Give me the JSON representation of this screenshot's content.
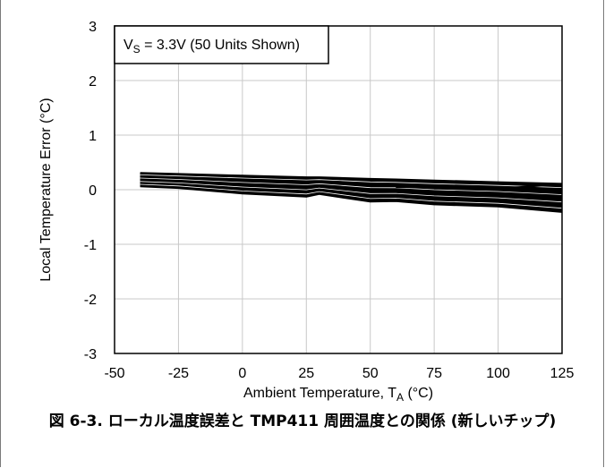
{
  "figure": {
    "caption": "図 6-3. ローカル温度誤差と TMP411 周囲温度との関係 (新しいチップ)"
  },
  "chart_data": {
    "type": "line",
    "title": "",
    "xlabel": "Ambient Temperature, T_A (°C)",
    "xlabel_main": "Ambient Temperature, T",
    "xlabel_sub": "A",
    "xlabel_unit": " (°C)",
    "ylabel": "Local Temperature Error (°C)",
    "xlim": [
      -50,
      125
    ],
    "ylim": [
      -3,
      3
    ],
    "xticks": [
      -50,
      -25,
      0,
      25,
      50,
      75,
      100,
      125
    ],
    "yticks": [
      3,
      2,
      1,
      0,
      -1,
      -2,
      -3
    ],
    "grid": true,
    "annotation": {
      "prefix": "V",
      "sub": "S",
      "text": " = 3.3V (50 Units Shown)"
    },
    "colors": {
      "line": "#000000",
      "grid": "#c8c8c8"
    },
    "x": [
      -40,
      -25,
      0,
      25,
      30,
      50,
      60,
      75,
      100,
      125
    ],
    "series_bounds": {
      "upper": [
        0.3,
        0.28,
        0.25,
        0.22,
        0.22,
        0.19,
        0.18,
        0.16,
        0.13,
        0.1
      ],
      "lower": [
        0.07,
        0.04,
        -0.06,
        -0.12,
        -0.07,
        -0.21,
        -0.2,
        -0.26,
        -0.3,
        -0.4
      ]
    },
    "units_shown": 50
  }
}
